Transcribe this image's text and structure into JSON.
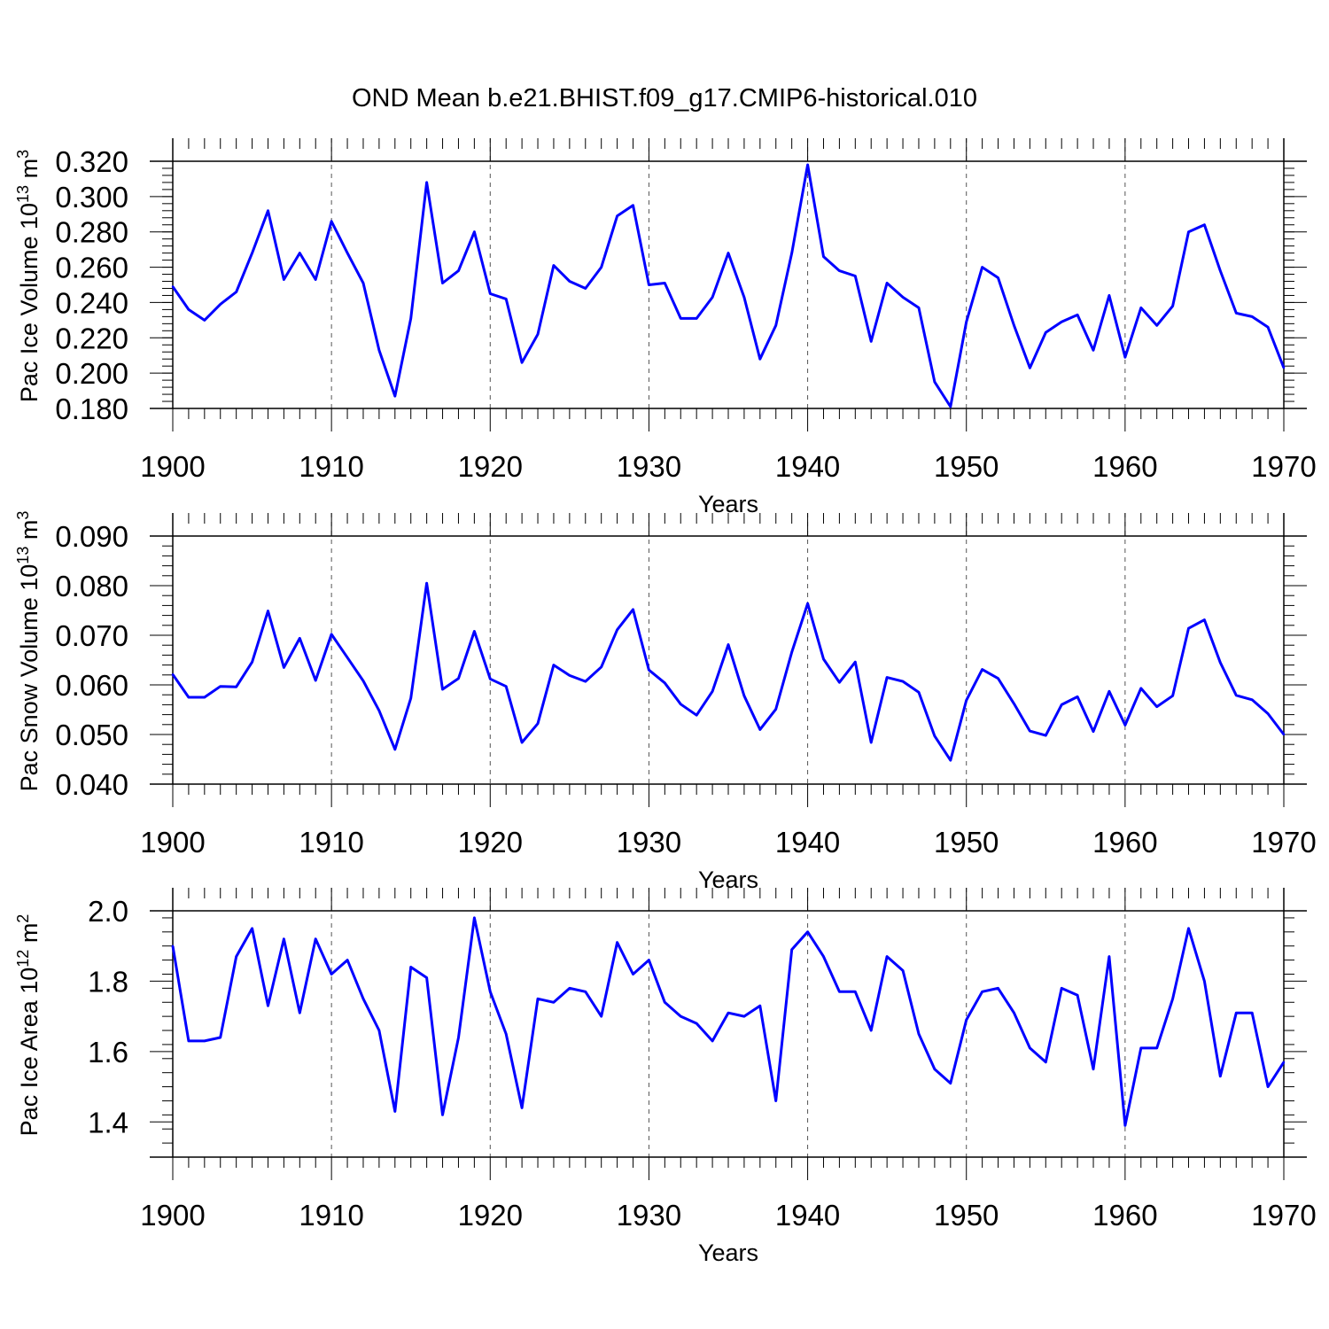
{
  "figure": {
    "title": "OND Mean b.e21.BHIST.f09_g17.CMIP6-historical.010",
    "line_color": "#0000ff"
  },
  "chart_data": [
    {
      "type": "line",
      "ylabel_main": "Pac Ice Volume 10",
      "ylabel_exp": "13",
      "ylabel_unit": " m",
      "ylabel_unit_exp": "3",
      "xlabel": "Years",
      "xlim": [
        1900,
        1970
      ],
      "ylim": [
        0.18,
        0.32
      ],
      "yticks": [
        0.18,
        0.2,
        0.22,
        0.24,
        0.26,
        0.28,
        0.3,
        0.32
      ],
      "ytick_labels": [
        "0.180",
        "0.200",
        "0.220",
        "0.240",
        "0.260",
        "0.280",
        "0.300",
        "0.320"
      ],
      "xticks": [
        1900,
        1910,
        1920,
        1930,
        1940,
        1950,
        1960,
        1970
      ],
      "xtick_labels": [
        "1900",
        "1910",
        "1920",
        "1930",
        "1940",
        "1950",
        "1960",
        "1970"
      ],
      "start_year": 1900,
      "values": [
        0.249,
        0.236,
        0.23,
        0.239,
        0.246,
        0.268,
        0.292,
        0.253,
        0.268,
        0.253,
        0.286,
        0.268,
        0.251,
        0.213,
        0.187,
        0.231,
        0.308,
        0.251,
        0.258,
        0.28,
        0.245,
        0.242,
        0.206,
        0.222,
        0.261,
        0.252,
        0.248,
        0.26,
        0.289,
        0.295,
        0.25,
        0.251,
        0.231,
        0.231,
        0.243,
        0.268,
        0.243,
        0.208,
        0.227,
        0.268,
        0.318,
        0.266,
        0.258,
        0.255,
        0.218,
        0.251,
        0.243,
        0.237,
        0.195,
        0.181,
        0.229,
        0.26,
        0.254,
        0.227,
        0.203,
        0.223,
        0.229,
        0.233,
        0.213,
        0.244,
        0.209,
        0.237,
        0.227,
        0.238,
        0.28,
        0.284,
        0.258,
        0.234,
        0.232,
        0.226,
        0.203
      ]
    },
    {
      "type": "line",
      "ylabel_main": "Pac Snow Volume 10",
      "ylabel_exp": "13",
      "ylabel_unit": " m",
      "ylabel_unit_exp": "3",
      "xlabel": "Years",
      "xlim": [
        1900,
        1970
      ],
      "ylim": [
        0.04,
        0.09
      ],
      "yticks": [
        0.04,
        0.05,
        0.06,
        0.07,
        0.08,
        0.09
      ],
      "ytick_labels": [
        "0.040",
        "0.050",
        "0.060",
        "0.070",
        "0.080",
        "0.090"
      ],
      "xticks": [
        1900,
        1910,
        1920,
        1930,
        1940,
        1950,
        1960,
        1970
      ],
      "xtick_labels": [
        "1900",
        "1910",
        "1920",
        "1930",
        "1940",
        "1950",
        "1960",
        "1970"
      ],
      "start_year": 1900,
      "values": [
        0.0621,
        0.0575,
        0.0575,
        0.0597,
        0.0596,
        0.0646,
        0.0749,
        0.0635,
        0.0694,
        0.0609,
        0.0702,
        0.0655,
        0.0608,
        0.0548,
        0.047,
        0.0573,
        0.0805,
        0.0591,
        0.0613,
        0.0708,
        0.0612,
        0.0597,
        0.0484,
        0.0522,
        0.064,
        0.0619,
        0.0607,
        0.0636,
        0.0711,
        0.0752,
        0.063,
        0.0604,
        0.0561,
        0.0539,
        0.0587,
        0.0681,
        0.0578,
        0.051,
        0.0551,
        0.0666,
        0.0764,
        0.0652,
        0.0605,
        0.0646,
        0.0484,
        0.0615,
        0.0607,
        0.0585,
        0.0497,
        0.0448,
        0.0569,
        0.0631,
        0.0613,
        0.0562,
        0.0507,
        0.0498,
        0.056,
        0.0576,
        0.0506,
        0.0587,
        0.0519,
        0.0593,
        0.0556,
        0.0578,
        0.0714,
        0.0731,
        0.0645,
        0.0579,
        0.057,
        0.0542,
        0.05
      ]
    },
    {
      "type": "line",
      "ylabel_main": "Pac Ice Area 10",
      "ylabel_exp": "12",
      "ylabel_unit": " m",
      "ylabel_unit_exp": "2",
      "xlabel": "Years",
      "xlim": [
        1900,
        1970
      ],
      "ylim": [
        1.3,
        2.0
      ],
      "yticks": [
        1.4,
        1.6,
        1.8,
        2.0
      ],
      "ytick_labels": [
        "1.4",
        "1.6",
        "1.8",
        "2.0"
      ],
      "xticks": [
        1900,
        1910,
        1920,
        1930,
        1940,
        1950,
        1960,
        1970
      ],
      "xtick_labels": [
        "1900",
        "1910",
        "1920",
        "1930",
        "1940",
        "1950",
        "1960",
        "1970"
      ],
      "start_year": 1900,
      "values": [
        1.9,
        1.63,
        1.63,
        1.64,
        1.87,
        1.95,
        1.73,
        1.92,
        1.71,
        1.92,
        1.82,
        1.86,
        1.75,
        1.66,
        1.43,
        1.84,
        1.81,
        1.42,
        1.64,
        1.98,
        1.77,
        1.65,
        1.44,
        1.75,
        1.74,
        1.78,
        1.77,
        1.7,
        1.91,
        1.82,
        1.86,
        1.74,
        1.7,
        1.68,
        1.63,
        1.71,
        1.7,
        1.73,
        1.46,
        1.89,
        1.94,
        1.87,
        1.77,
        1.77,
        1.66,
        1.87,
        1.83,
        1.65,
        1.55,
        1.51,
        1.69,
        1.77,
        1.78,
        1.71,
        1.61,
        1.57,
        1.78,
        1.76,
        1.55,
        1.87,
        1.39,
        1.61,
        1.61,
        1.75,
        1.95,
        1.8,
        1.53,
        1.71,
        1.71,
        1.5,
        1.57
      ]
    }
  ]
}
